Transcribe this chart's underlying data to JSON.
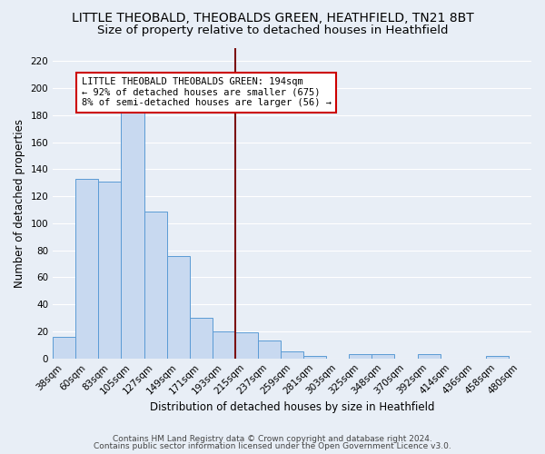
{
  "title": "LITTLE THEOBALD, THEOBALDS GREEN, HEATHFIELD, TN21 8BT",
  "subtitle": "Size of property relative to detached houses in Heathfield",
  "xlabel": "Distribution of detached houses by size in Heathfield",
  "ylabel": "Number of detached properties",
  "categories": [
    "38sqm",
    "60sqm",
    "83sqm",
    "105sqm",
    "127sqm",
    "149sqm",
    "171sqm",
    "193sqm",
    "215sqm",
    "237sqm",
    "259sqm",
    "281sqm",
    "303sqm",
    "325sqm",
    "348sqm",
    "370sqm",
    "392sqm",
    "414sqm",
    "436sqm",
    "458sqm",
    "480sqm"
  ],
  "values": [
    16,
    133,
    131,
    184,
    109,
    76,
    30,
    20,
    19,
    13,
    5,
    2,
    0,
    3,
    3,
    0,
    3,
    0,
    0,
    2,
    0
  ],
  "bar_color": "#c8d9f0",
  "bar_edge_color": "#5b9bd5",
  "vline_color": "#7b1010",
  "annotation_line1": "LITTLE THEOBALD THEOBALDS GREEN: 194sqm",
  "annotation_line2": "← 92% of detached houses are smaller (675)",
  "annotation_line3": "8% of semi-detached houses are larger (56) →",
  "annotation_box_edge_color": "#cc0000",
  "ylim": [
    0,
    230
  ],
  "yticks": [
    0,
    20,
    40,
    60,
    80,
    100,
    120,
    140,
    160,
    180,
    200,
    220
  ],
  "bg_color": "#e8eef6",
  "grid_color": "#ffffff",
  "footer_line1": "Contains HM Land Registry data © Crown copyright and database right 2024.",
  "footer_line2": "Contains public sector information licensed under the Open Government Licence v3.0.",
  "title_fontsize": 10,
  "subtitle_fontsize": 9.5,
  "axis_label_fontsize": 8.5,
  "tick_fontsize": 7.5,
  "annotation_fontsize": 7.5,
  "footer_fontsize": 6.5
}
